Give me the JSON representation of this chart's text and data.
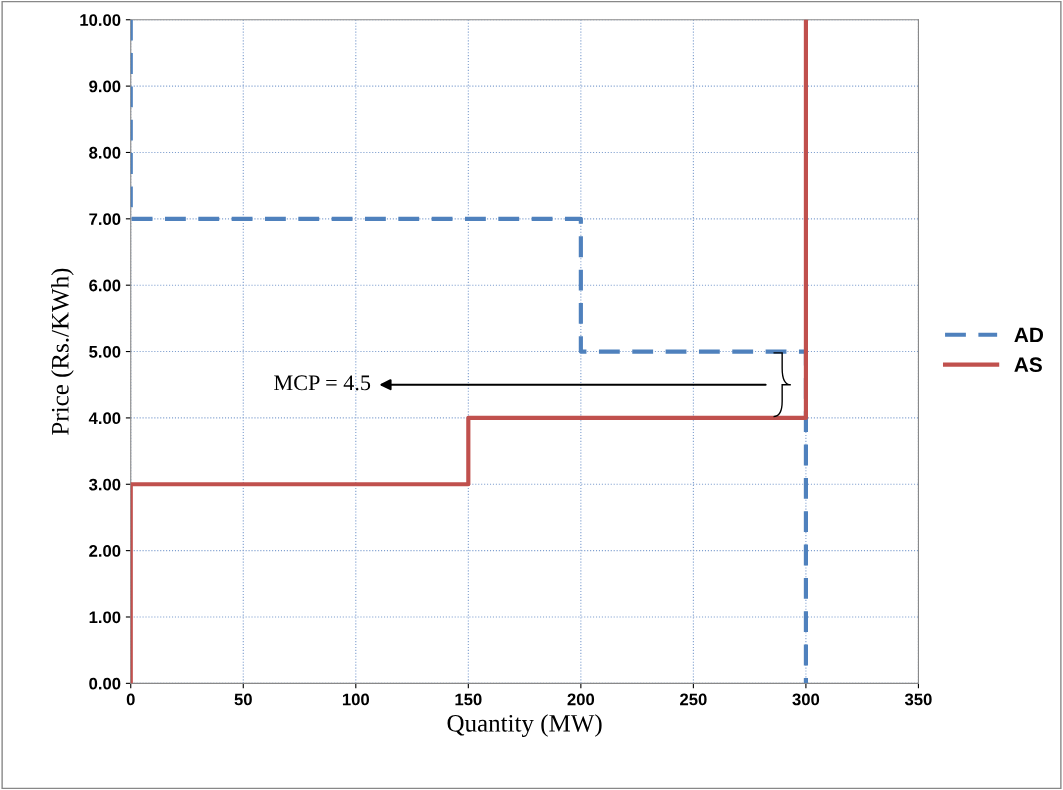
{
  "chart_data": {
    "type": "line",
    "xlabel": "Quantity (MW)",
    "ylabel": "Price (Rs./KWh)",
    "series": [
      {
        "name": "AD",
        "color": "#4f81bd",
        "line_style": "dashed",
        "x": [
          0,
          0,
          200,
          200,
          300,
          300
        ],
        "values": [
          10,
          7,
          7,
          5,
          5,
          0
        ]
      },
      {
        "name": "AS",
        "color": "#c0504d",
        "line_style": "solid",
        "x": [
          0,
          0,
          150,
          150,
          300,
          300
        ],
        "values": [
          0,
          3,
          3,
          4,
          4,
          10
        ]
      }
    ],
    "xlim": [
      0,
      350
    ],
    "xticks": [
      0,
      50,
      100,
      150,
      200,
      250,
      300,
      350
    ],
    "ylim": [
      0,
      10
    ],
    "yticks": [
      {
        "value": 0,
        "label": "0.00"
      },
      {
        "value": 1,
        "label": "1.00"
      },
      {
        "value": 2,
        "label": "2.00"
      },
      {
        "value": 3,
        "label": "3.00"
      },
      {
        "value": 4,
        "label": "4.00"
      },
      {
        "value": 5,
        "label": "5.00"
      },
      {
        "value": 6,
        "label": "6.00"
      },
      {
        "value": 7,
        "label": "7.00"
      },
      {
        "value": 8,
        "label": "8.00"
      },
      {
        "value": 9,
        "label": "9.00"
      },
      {
        "value": 10,
        "label": "10.00"
      }
    ],
    "annotations": [
      "MCP = 4.5"
    ],
    "grid": true,
    "legend": "right",
    "marker": "none"
  }
}
